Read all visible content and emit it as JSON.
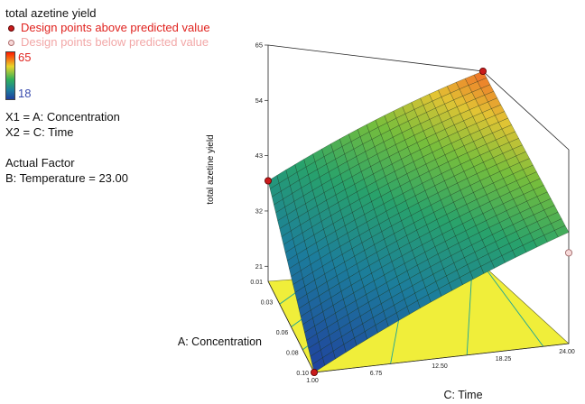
{
  "legend": {
    "title": "total azetine yield",
    "above_label": "Design points above predicted value",
    "below_label": "Design points below predicted value",
    "scale_max": "65",
    "scale_min": "18",
    "x1": "X1 = A: Concentration",
    "x2": "X2 = C: Time",
    "actual_factor_title": "Actual Factor",
    "actual_factor_value": "B: Temperature = 23.00"
  },
  "colors": {
    "above_point": "#c91b1b",
    "below_point": "#f7d9d9",
    "floor": "#f0ee3a",
    "contour": "#1aa39a",
    "mesh": "#0c1f0c"
  },
  "chart_data": {
    "type": "surface",
    "zlabel": "total azetine yield",
    "xlabel": "A: Concentration",
    "ylabel": "C: Time",
    "x_ticks": [
      "0.01",
      "0.03",
      "0.06",
      "0.08",
      "0.10"
    ],
    "y_ticks": [
      "1.00",
      "6.75",
      "12.50",
      "18.25",
      "24.00"
    ],
    "z_ticks": [
      "21",
      "32",
      "43",
      "54",
      "65"
    ],
    "xlim": [
      0.01,
      0.1
    ],
    "ylim": [
      1.0,
      24.0
    ],
    "zlim": [
      18,
      65
    ],
    "color_range": [
      18,
      65
    ],
    "surface_corners": [
      {
        "concentration": 0.01,
        "time": 1.0,
        "yield": 38
      },
      {
        "concentration": 0.01,
        "time": 24.0,
        "yield": 65
      },
      {
        "concentration": 0.1,
        "time": 1.0,
        "yield": 18
      },
      {
        "concentration": 0.1,
        "time": 24.0,
        "yield": 45
      }
    ],
    "design_points": [
      {
        "concentration": 0.01,
        "time": 1.0,
        "yield": 38,
        "position": "above"
      },
      {
        "concentration": 0.01,
        "time": 24.0,
        "yield": 65,
        "position": "above"
      },
      {
        "concentration": 0.1,
        "time": 1.0,
        "yield": 18,
        "position": "above"
      },
      {
        "concentration": 0.1,
        "time": 24.0,
        "yield": 40,
        "position": "below"
      }
    ],
    "grid": true
  }
}
